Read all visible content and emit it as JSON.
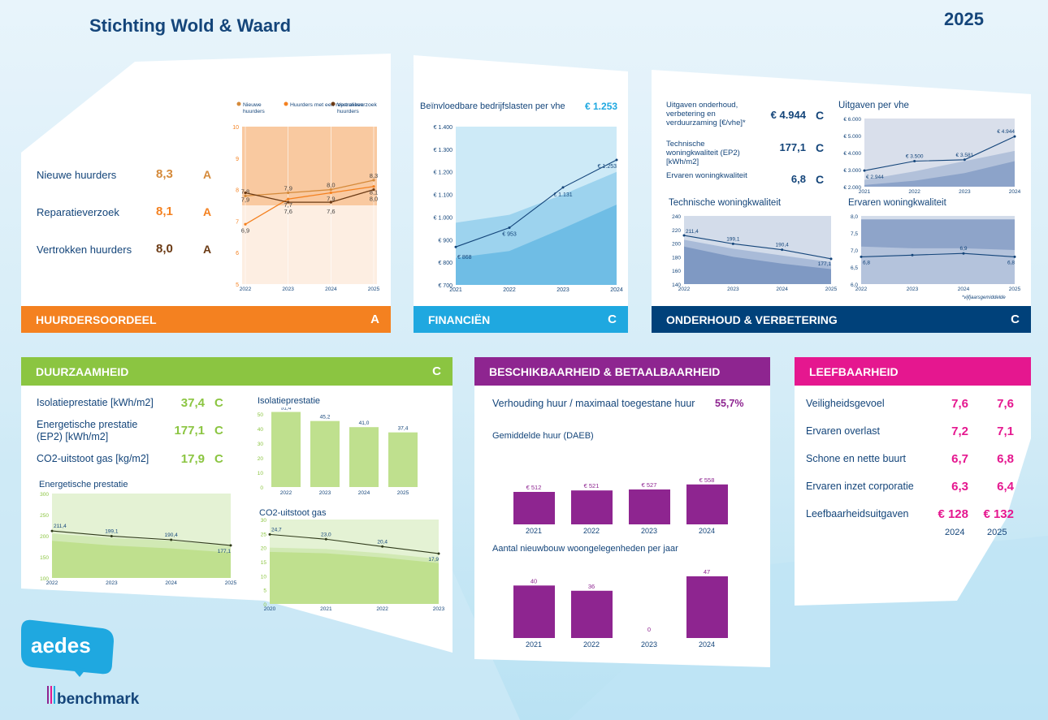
{
  "header": {
    "title": "Stichting Wold & Waard",
    "year": "2025"
  },
  "colors": {
    "orange": "#f48120",
    "blue": "#1fa8e0",
    "navy": "#00417a",
    "green": "#8bc541",
    "purple": "#8e2590",
    "pink": "#e5178f"
  },
  "huurders": {
    "title": "HUURDERSOORDEEL",
    "grade": "A",
    "rows": [
      {
        "label": "Nieuwe huurders",
        "value": "8,3",
        "grade": "A"
      },
      {
        "label": "Reparatieverzoek",
        "value": "8,1",
        "grade": "A"
      },
      {
        "label": "Vertrokken huurders",
        "value": "8,0",
        "grade": "A"
      }
    ],
    "legend": [
      "Nieuwe huurders",
      "Huurders met een reparatieverzoek",
      "Vertrokken huurders"
    ],
    "chart_data": {
      "type": "line",
      "x": [
        "2022",
        "2023",
        "2024",
        "2025"
      ],
      "ylim": [
        5,
        10
      ],
      "yticks": [
        "5",
        "6",
        "7",
        "8",
        "9",
        "10"
      ],
      "series": [
        {
          "name": "Nieuwe huurders",
          "values": [
            7.8,
            7.9,
            8.0,
            8.3
          ],
          "labels": [
            "7,8",
            "7,9",
            "8,0",
            "8,3"
          ]
        },
        {
          "name": "Huurders met een reparatieverzoek",
          "values": [
            6.9,
            7.7,
            7.9,
            8.1
          ],
          "labels": [
            "6,9",
            "7,7",
            "7,9",
            "8,1"
          ]
        },
        {
          "name": "Vertrokken huurders",
          "values": [
            7.9,
            7.6,
            7.6,
            8.0
          ],
          "labels": [
            "7,9",
            "7,6",
            "7,6",
            "8,0"
          ]
        }
      ]
    }
  },
  "financien": {
    "title": "FINANCIËN",
    "grade": "C",
    "metric_label": "Beïnvloedbare bedrijfslasten per vhe",
    "metric_value": "€ 1.253",
    "chart_data": {
      "type": "line",
      "x": [
        "2021",
        "2022",
        "2023",
        "2024"
      ],
      "ylim": [
        700,
        1400
      ],
      "yticks": [
        "€ 700",
        "€ 800",
        "€ 900",
        "€ 1.000",
        "€ 1.100",
        "€ 1.200",
        "€ 1.300",
        "€ 1.400"
      ],
      "values": [
        868,
        953,
        1131,
        1253
      ],
      "labels": [
        "€ 868",
        "€ 953",
        "€ 1.131",
        "€ 1.253"
      ]
    }
  },
  "onderhoud": {
    "title": "ONDERHOUD & VERBETERING",
    "grade": "C",
    "rows": [
      {
        "label": "Uitgaven onderhoud, verbetering en verduurzaming [€/vhe]*",
        "value": "€ 4.944",
        "grade": "C"
      },
      {
        "label": "Technische woningkwaliteit (EP2) [kWh/m2]",
        "value": "177,1",
        "grade": "C"
      },
      {
        "label": "Ervaren woningkwaliteit",
        "value": "6,8",
        "grade": "C"
      }
    ],
    "footnote": "*vijfjaarsgemiddelde",
    "chart_uitgaven": {
      "title": "Uitgaven per vhe",
      "type": "line",
      "x": [
        "2021",
        "2022",
        "2023",
        "2024"
      ],
      "ylim": [
        2000,
        6000
      ],
      "yticks": [
        "€ 2.000",
        "€ 3.000",
        "€ 4.000",
        "€ 5.000",
        "€ 6.000"
      ],
      "values": [
        2944,
        3500,
        3581,
        4944
      ],
      "labels": [
        "€ 2.944",
        "€ 3.500",
        "€ 3.581",
        "€ 4.944"
      ]
    },
    "chart_technisch": {
      "title": "Technische woningkwaliteit",
      "type": "line",
      "x": [
        "2022",
        "2023",
        "2024",
        "2025"
      ],
      "ylim": [
        140,
        240
      ],
      "yticks": [
        "140",
        "160",
        "180",
        "200",
        "220",
        "240"
      ],
      "values": [
        211.4,
        199.1,
        190.4,
        177.1
      ],
      "labels": [
        "211,4",
        "199,1",
        "190,4",
        "177,1"
      ]
    },
    "chart_ervaren": {
      "title": "Ervaren woningkwaliteit",
      "type": "line",
      "x": [
        "2022",
        "2023",
        "2024",
        "2025"
      ],
      "ylim": [
        6.0,
        8.0
      ],
      "yticks": [
        "6,0",
        "6,5",
        "7,0",
        "7,5",
        "8,0"
      ],
      "values": [
        6.8,
        6.85,
        6.9,
        6.8
      ],
      "labels": [
        "6,8",
        "",
        "6,9",
        "6,8"
      ]
    }
  },
  "duurzaamheid": {
    "title": "DUURZAAMHEID",
    "grade": "C",
    "rows": [
      {
        "label": "Isolatieprestatie [kWh/m2]",
        "value": "37,4",
        "grade": "C"
      },
      {
        "label": "Energetische prestatie (EP2) [kWh/m2]",
        "value": "177,1",
        "grade": "C"
      },
      {
        "label": "CO2-uitstoot gas [kg/m2]",
        "value": "17,9",
        "grade": "C"
      }
    ],
    "chart_energetisch": {
      "title": "Energetische prestatie",
      "type": "line",
      "x": [
        "2022",
        "2023",
        "2024",
        "2025"
      ],
      "ylim": [
        100,
        300
      ],
      "yticks": [
        "100",
        "150",
        "200",
        "250",
        "300"
      ],
      "values": [
        211.4,
        199.1,
        190.4,
        177.1
      ],
      "labels": [
        "211,4",
        "199,1",
        "190,4",
        "177,1"
      ]
    },
    "chart_isolatie": {
      "title": "Isolatieprestatie",
      "type": "bar",
      "categories": [
        "2022",
        "2023",
        "2024",
        "2025"
      ],
      "ylim": [
        0,
        50
      ],
      "yticks": [
        "0",
        "10",
        "20",
        "30",
        "40",
        "50"
      ],
      "values": [
        51.4,
        45.2,
        41.0,
        37.4
      ],
      "labels": [
        "51,4",
        "45,2",
        "41,0",
        "37,4"
      ]
    },
    "chart_co2": {
      "title": "CO2-uitstoot gas",
      "type": "line",
      "x": [
        "2020",
        "2021",
        "2022",
        "2023"
      ],
      "ylim": [
        0,
        30
      ],
      "yticks": [
        "0",
        "5",
        "10",
        "15",
        "20",
        "25",
        "30"
      ],
      "values": [
        24.7,
        23.0,
        20.4,
        17.9
      ],
      "labels": [
        "24,7",
        "23,0",
        "20,4",
        "17,9"
      ]
    }
  },
  "beschikbaarheid": {
    "title": "BESCHIKBAARHEID & BETAALBAARHEID",
    "ratio_label": "Verhouding huur / maximaal toegestane huur",
    "ratio_value": "55,7%",
    "chart_huur": {
      "title": "Gemiddelde huur (DAEB)",
      "type": "bar",
      "categories": [
        "2021",
        "2022",
        "2023",
        "2024"
      ],
      "values": [
        512,
        521,
        527,
        558
      ],
      "labels": [
        "€ 512",
        "€ 521",
        "€ 527",
        "€ 558"
      ]
    },
    "chart_nieuwbouw": {
      "title": "Aantal nieuwbouw woongelegenheden per jaar",
      "type": "bar",
      "categories": [
        "2021",
        "2022",
        "2023",
        "2024"
      ],
      "values": [
        40,
        36,
        0,
        47
      ],
      "labels": [
        "40",
        "36",
        "0",
        "47"
      ]
    }
  },
  "leefbaarheid": {
    "title": "LEEFBAARHEID",
    "rows": [
      {
        "label": "Veiligheidsgevoel",
        "v1": "7,6",
        "v2": "7,6"
      },
      {
        "label": "Ervaren overlast",
        "v1": "7,2",
        "v2": "7,1"
      },
      {
        "label": "Schone en nette buurt",
        "v1": "6,7",
        "v2": "6,8"
      },
      {
        "label": "Ervaren inzet corporatie",
        "v1": "6,3",
        "v2": "6,4"
      },
      {
        "label": "Leefbaarheidsuitgaven",
        "v1": "€ 128",
        "v2": "€ 132"
      }
    ],
    "years": [
      "2024",
      "2025"
    ]
  },
  "logo": {
    "aedes": "aedes",
    "benchmark": "benchmark"
  }
}
